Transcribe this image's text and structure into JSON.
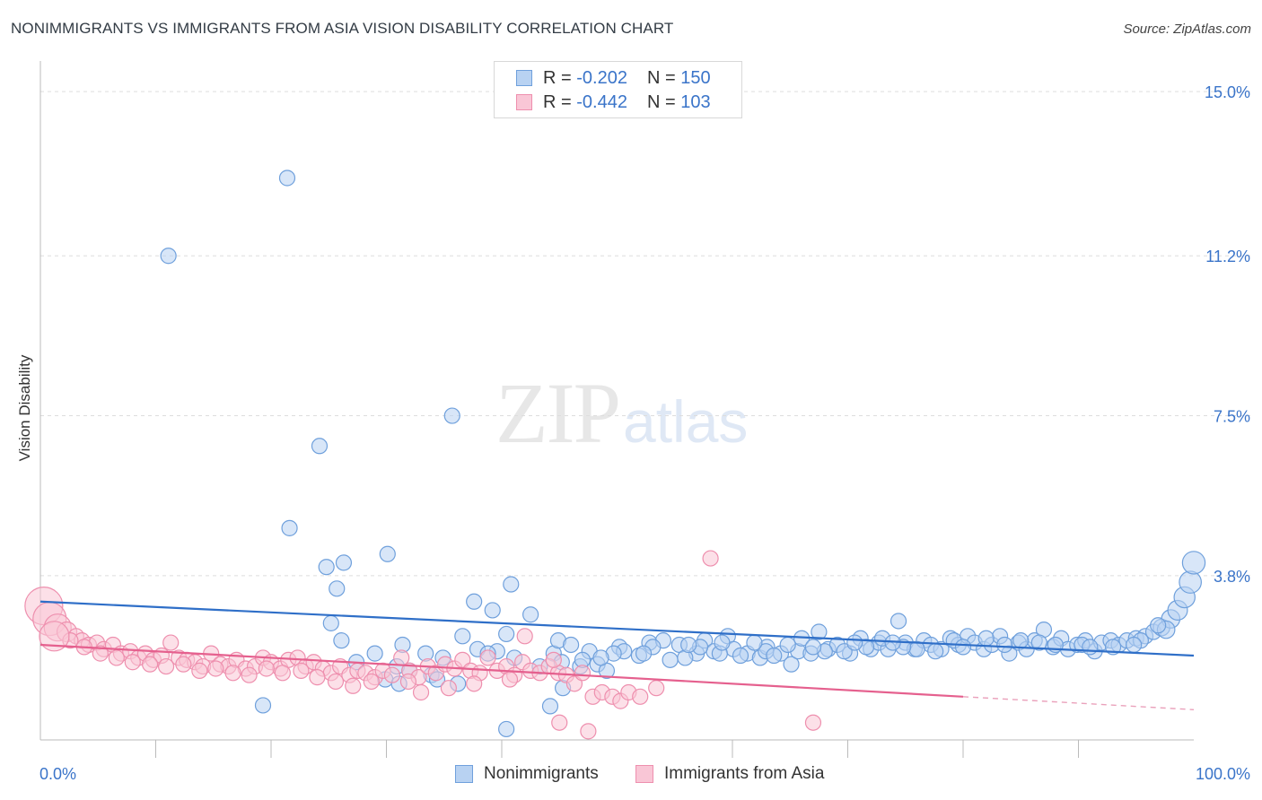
{
  "chart_data": {
    "type": "scatter",
    "title": "NONIMMIGRANTS VS IMMIGRANTS FROM ASIA VISION DISABILITY CORRELATION CHART",
    "source": "Source: ZipAtlas.com",
    "xlabel": "",
    "ylabel": "Vision Disability",
    "xlim": [
      0,
      100
    ],
    "ylim": [
      0,
      15.5
    ],
    "x_tick_labels": [
      "0.0%",
      "100.0%"
    ],
    "y_ticks": [
      3.8,
      7.5,
      11.2,
      15.0
    ],
    "y_tick_labels": [
      "3.8%",
      "7.5%",
      "11.2%",
      "15.0%"
    ],
    "watermark": {
      "zip": "ZIP",
      "atlas": "atlas"
    },
    "legend": [
      {
        "r_label": "R =",
        "r_value": "-0.202",
        "n_label": "N =",
        "n_value": "150"
      },
      {
        "r_label": "R =",
        "r_value": "-0.442",
        "n_label": "N =",
        "n_value": "103"
      }
    ],
    "series": [
      {
        "name": "Nonimmigrants",
        "color": "#6fa0dc",
        "fill": "#b8d2f2",
        "trend": {
          "x": [
            0,
            100
          ],
          "y": [
            3.2,
            1.95
          ]
        },
        "points": [
          [
            21.4,
            13.0
          ],
          [
            11.1,
            11.2
          ],
          [
            35.7,
            7.5
          ],
          [
            24.2,
            6.8
          ],
          [
            21.6,
            4.9
          ],
          [
            30.1,
            4.3
          ],
          [
            26.3,
            4.1
          ],
          [
            24.8,
            4.0
          ],
          [
            40.8,
            3.6
          ],
          [
            25.7,
            3.5
          ],
          [
            37.6,
            3.2
          ],
          [
            39.2,
            3.0
          ],
          [
            42.5,
            2.9
          ],
          [
            25.2,
            2.7
          ],
          [
            40.4,
            2.45
          ],
          [
            36.6,
            2.4
          ],
          [
            26.1,
            2.3
          ],
          [
            31.4,
            2.2
          ],
          [
            37.9,
            2.1
          ],
          [
            39.6,
            2.05
          ],
          [
            29.0,
            2.0
          ],
          [
            33.4,
            2.0
          ],
          [
            34.9,
            1.9
          ],
          [
            38.8,
            2.0
          ],
          [
            41.1,
            1.9
          ],
          [
            27.4,
            1.8
          ],
          [
            30.9,
            1.7
          ],
          [
            32.0,
            1.6
          ],
          [
            33.9,
            1.5
          ],
          [
            44.5,
            2.0
          ],
          [
            45.2,
            1.8
          ],
          [
            46.8,
            1.7
          ],
          [
            48.3,
            1.75
          ],
          [
            49.1,
            1.6
          ],
          [
            43.3,
            1.7
          ],
          [
            29.9,
            1.4
          ],
          [
            31.1,
            1.3
          ],
          [
            34.4,
            1.4
          ],
          [
            36.2,
            1.3
          ],
          [
            19.3,
            0.8
          ],
          [
            44.2,
            0.78
          ],
          [
            40.4,
            0.25
          ],
          [
            45.3,
            1.2
          ],
          [
            44.9,
            2.3
          ],
          [
            50.2,
            2.15
          ],
          [
            51.9,
            1.95
          ],
          [
            52.8,
            2.25
          ],
          [
            54.6,
            1.85
          ],
          [
            55.4,
            2.2
          ],
          [
            56.9,
            2.0
          ],
          [
            57.6,
            2.3
          ],
          [
            58.4,
            2.05
          ],
          [
            59.6,
            2.4
          ],
          [
            60.1,
            2.1
          ],
          [
            61.3,
            2.0
          ],
          [
            62.4,
            1.9
          ],
          [
            63.0,
            2.15
          ],
          [
            64.2,
            2.0
          ],
          [
            65.1,
            1.75
          ],
          [
            65.7,
            2.05
          ],
          [
            66.8,
            2.0
          ],
          [
            67.5,
            2.5
          ],
          [
            68.3,
            2.1
          ],
          [
            69.1,
            2.2
          ],
          [
            70.2,
            2.0
          ],
          [
            71.1,
            2.35
          ],
          [
            72.0,
            2.1
          ],
          [
            72.7,
            2.25
          ],
          [
            73.5,
            2.1
          ],
          [
            74.4,
            2.75
          ],
          [
            75.0,
            2.25
          ],
          [
            75.8,
            2.1
          ],
          [
            76.6,
            2.3
          ],
          [
            77.2,
            2.2
          ],
          [
            78.1,
            2.1
          ],
          [
            78.9,
            2.35
          ],
          [
            79.6,
            2.2
          ],
          [
            80.4,
            2.4
          ],
          [
            81.0,
            2.25
          ],
          [
            81.8,
            2.1
          ],
          [
            82.5,
            2.2
          ],
          [
            83.2,
            2.4
          ],
          [
            84.0,
            2.0
          ],
          [
            84.8,
            2.25
          ],
          [
            85.5,
            2.1
          ],
          [
            86.2,
            2.3
          ],
          [
            87.0,
            2.55
          ],
          [
            87.8,
            2.15
          ],
          [
            88.5,
            2.35
          ],
          [
            89.1,
            2.1
          ],
          [
            89.9,
            2.2
          ],
          [
            90.6,
            2.3
          ],
          [
            91.4,
            2.05
          ],
          [
            92.0,
            2.25
          ],
          [
            92.8,
            2.3
          ],
          [
            93.5,
            2.2
          ],
          [
            94.2,
            2.3
          ],
          [
            95.0,
            2.35
          ],
          [
            95.8,
            2.4
          ],
          [
            96.5,
            2.5
          ],
          [
            97.2,
            2.6
          ],
          [
            98.0,
            2.8
          ],
          [
            98.6,
            3.0
          ],
          [
            99.2,
            3.3
          ],
          [
            99.7,
            3.65
          ],
          [
            100.0,
            4.1
          ],
          [
            54.0,
            2.3
          ],
          [
            53.1,
            2.15
          ],
          [
            47.6,
            2.05
          ],
          [
            46.0,
            2.2
          ],
          [
            58.9,
            2.0
          ],
          [
            62.9,
            2.05
          ],
          [
            66.0,
            2.35
          ],
          [
            69.7,
            2.05
          ],
          [
            73.0,
            2.35
          ],
          [
            76.0,
            2.1
          ],
          [
            79.2,
            2.3
          ],
          [
            82.0,
            2.35
          ],
          [
            85.0,
            2.3
          ],
          [
            88.0,
            2.2
          ],
          [
            90.3,
            2.2
          ],
          [
            93.0,
            2.15
          ],
          [
            95.4,
            2.3
          ],
          [
            97.6,
            2.55
          ],
          [
            96.9,
            2.65
          ],
          [
            94.8,
            2.2
          ],
          [
            91.0,
            2.15
          ],
          [
            86.6,
            2.25
          ],
          [
            83.6,
            2.2
          ],
          [
            80.0,
            2.15
          ],
          [
            77.6,
            2.05
          ],
          [
            74.8,
            2.15
          ],
          [
            71.6,
            2.15
          ],
          [
            68.0,
            2.05
          ],
          [
            64.8,
            2.2
          ],
          [
            61.9,
            2.25
          ],
          [
            60.7,
            1.95
          ],
          [
            57.2,
            2.15
          ],
          [
            55.9,
            1.9
          ],
          [
            52.3,
            2.0
          ],
          [
            50.6,
            2.05
          ],
          [
            49.7,
            2.0
          ],
          [
            48.6,
            1.9
          ],
          [
            47.0,
            1.85
          ],
          [
            56.2,
            2.2
          ],
          [
            59.1,
            2.25
          ],
          [
            63.6,
            1.95
          ],
          [
            67.0,
            2.15
          ],
          [
            70.6,
            2.25
          ],
          [
            73.9,
            2.25
          ]
        ]
      },
      {
        "name": "Immigrants from Asia",
        "color": "#ee8fae",
        "fill": "#f9c6d6",
        "trend": {
          "x": [
            0,
            80
          ],
          "y": [
            2.2,
            1.0
          ]
        },
        "trend_dashed": {
          "x": [
            80,
            100
          ],
          "y": [
            1.0,
            0.7
          ]
        },
        "points": [
          [
            0.3,
            3.1
          ],
          [
            0.8,
            2.8
          ],
          [
            1.5,
            2.6
          ],
          [
            2.3,
            2.5
          ],
          [
            3.1,
            2.4
          ],
          [
            3.6,
            2.3
          ],
          [
            4.2,
            2.2
          ],
          [
            4.9,
            2.25
          ],
          [
            5.5,
            2.1
          ],
          [
            6.3,
            2.2
          ],
          [
            7.0,
            2.0
          ],
          [
            7.8,
            2.05
          ],
          [
            8.5,
            1.9
          ],
          [
            9.1,
            2.0
          ],
          [
            9.8,
            1.85
          ],
          [
            10.5,
            1.95
          ],
          [
            11.3,
            2.25
          ],
          [
            12.0,
            1.9
          ],
          [
            12.7,
            1.85
          ],
          [
            13.4,
            1.8
          ],
          [
            14.1,
            1.7
          ],
          [
            14.8,
            2.0
          ],
          [
            15.6,
            1.75
          ],
          [
            16.3,
            1.7
          ],
          [
            17.0,
            1.85
          ],
          [
            17.8,
            1.65
          ],
          [
            18.6,
            1.7
          ],
          [
            19.3,
            1.9
          ],
          [
            20.0,
            1.8
          ],
          [
            20.8,
            1.65
          ],
          [
            21.5,
            1.85
          ],
          [
            22.3,
            1.9
          ],
          [
            23.0,
            1.7
          ],
          [
            23.7,
            1.8
          ],
          [
            24.5,
            1.65
          ],
          [
            25.2,
            1.55
          ],
          [
            26.0,
            1.7
          ],
          [
            26.8,
            1.5
          ],
          [
            27.5,
            1.6
          ],
          [
            28.2,
            1.55
          ],
          [
            29.0,
            1.45
          ],
          [
            29.7,
            1.6
          ],
          [
            30.5,
            1.5
          ],
          [
            31.3,
            1.9
          ],
          [
            32.0,
            1.6
          ],
          [
            32.8,
            1.45
          ],
          [
            33.6,
            1.7
          ],
          [
            34.3,
            1.55
          ],
          [
            35.1,
            1.75
          ],
          [
            35.9,
            1.65
          ],
          [
            36.6,
            1.85
          ],
          [
            37.3,
            1.6
          ],
          [
            38.1,
            1.55
          ],
          [
            38.8,
            1.9
          ],
          [
            39.6,
            1.6
          ],
          [
            40.4,
            1.7
          ],
          [
            41.1,
            1.5
          ],
          [
            41.8,
            1.8
          ],
          [
            42.5,
            1.6
          ],
          [
            43.3,
            1.55
          ],
          [
            44.1,
            1.7
          ],
          [
            44.9,
            1.55
          ],
          [
            45.6,
            1.5
          ],
          [
            46.3,
            1.3
          ],
          [
            47.0,
            1.55
          ],
          [
            47.9,
            1.0
          ],
          [
            48.7,
            1.1
          ],
          [
            49.6,
            1.0
          ],
          [
            50.3,
            0.9
          ],
          [
            51.0,
            1.1
          ],
          [
            52.0,
            1.0
          ],
          [
            53.4,
            1.2
          ],
          [
            58.1,
            4.2
          ],
          [
            42.0,
            2.4
          ],
          [
            44.5,
            1.85
          ],
          [
            37.6,
            1.3
          ],
          [
            40.7,
            1.4
          ],
          [
            35.4,
            1.2
          ],
          [
            33.0,
            1.1
          ],
          [
            31.9,
            1.35
          ],
          [
            28.7,
            1.35
          ],
          [
            27.1,
            1.25
          ],
          [
            25.6,
            1.35
          ],
          [
            24.0,
            1.45
          ],
          [
            22.6,
            1.6
          ],
          [
            21.0,
            1.55
          ],
          [
            19.6,
            1.65
          ],
          [
            18.1,
            1.5
          ],
          [
            16.7,
            1.55
          ],
          [
            15.2,
            1.65
          ],
          [
            13.8,
            1.6
          ],
          [
            12.4,
            1.75
          ],
          [
            10.9,
            1.7
          ],
          [
            9.5,
            1.75
          ],
          [
            8.0,
            1.8
          ],
          [
            6.6,
            1.9
          ],
          [
            5.2,
            2.0
          ],
          [
            3.8,
            2.15
          ],
          [
            2.6,
            2.3
          ],
          [
            1.2,
            2.4
          ],
          [
            45.0,
            0.4
          ],
          [
            47.5,
            0.2
          ],
          [
            67.0,
            0.4
          ]
        ]
      }
    ]
  },
  "bottom_legend": [
    "Nonimmigrants",
    "Immigrants from Asia"
  ]
}
